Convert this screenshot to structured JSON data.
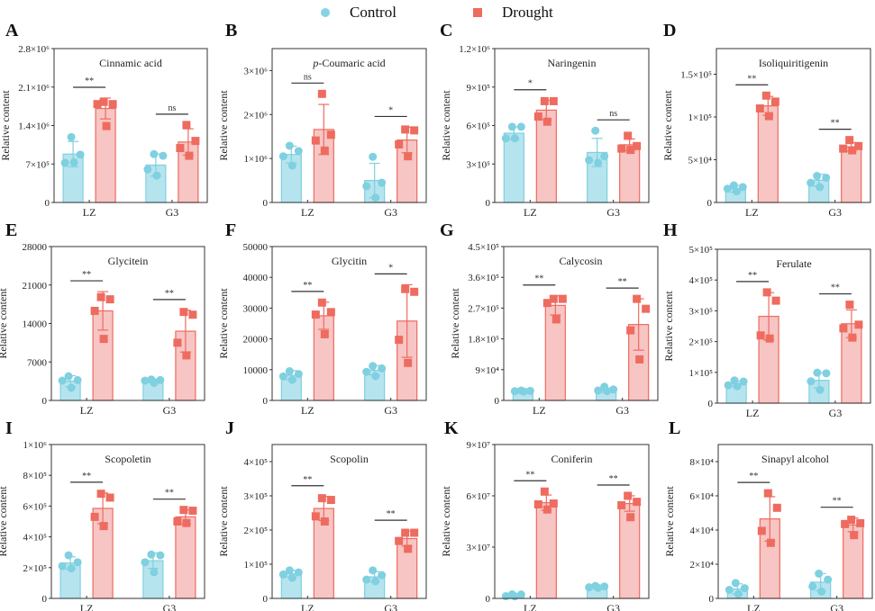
{
  "legend": {
    "control_label": "Control",
    "drought_label": "Drought",
    "control_color": "#7fd0e0",
    "drought_color": "#ee6b5f",
    "control_fill": "#b6e4ee",
    "drought_fill": "#f7c5c3"
  },
  "chart_data": [
    {
      "panel": "A",
      "type": "bar",
      "title": "Cinnamic acid",
      "title_italic_prefix": "",
      "ylabel": "Relative content",
      "categories": [
        "LZ",
        "G3"
      ],
      "ylim": [
        0,
        2800000
      ],
      "yticks": [
        {
          "v": 0,
          "label": "0"
        },
        {
          "v": 700000,
          "label": "7×10⁵"
        },
        {
          "v": 1400000,
          "label": "1.4×10⁶"
        },
        {
          "v": 2100000,
          "label": "2.1×10⁶"
        },
        {
          "v": 2800000,
          "label": "2.8×10⁶"
        }
      ],
      "series": [
        {
          "name": "Control",
          "means": [
            880000,
            680000
          ],
          "sd": [
            230000,
            200000
          ],
          "points": [
            [
              1190000,
              870000,
              720000,
              730000
            ],
            [
              880000,
              850000,
              600000,
              490000
            ]
          ]
        },
        {
          "name": "Drought",
          "means": [
            1710000,
            1100000
          ],
          "sd": [
            190000,
            240000
          ],
          "points": [
            [
              1830000,
              1790000,
              1790000,
              1390000
            ],
            [
              1410000,
              1120000,
              990000,
              850000
            ]
          ]
        }
      ],
      "significance": [
        "**",
        "ns"
      ]
    },
    {
      "panel": "B",
      "type": "bar",
      "title": "Coumaric acid",
      "title_italic_prefix": "p-",
      "ylabel": "Relative content",
      "categories": [
        "LZ",
        "G3"
      ],
      "ylim": [
        0,
        3500000
      ],
      "yticks": [
        {
          "v": 0,
          "label": "0"
        },
        {
          "v": 1000000,
          "label": "1×10⁶"
        },
        {
          "v": 2000000,
          "label": "2×10⁶"
        },
        {
          "v": 3000000,
          "label": "3×10⁶"
        }
      ],
      "series": [
        {
          "name": "Control",
          "means": [
            1090000,
            500000
          ],
          "sd": [
            190000,
            390000
          ],
          "points": [
            [
              1290000,
              1170000,
              1050000,
              840000
            ],
            [
              1040000,
              450000,
              370000,
              110000
            ]
          ]
        },
        {
          "name": "Drought",
          "means": [
            1660000,
            1420000
          ],
          "sd": [
            570000,
            290000
          ],
          "points": [
            [
              2470000,
              1540000,
              1410000,
              1180000
            ],
            [
              1660000,
              1640000,
              1320000,
              1050000
            ]
          ]
        }
      ],
      "significance": [
        "ns",
        "*"
      ]
    },
    {
      "panel": "C",
      "type": "bar",
      "title": "Naringenin",
      "title_italic_prefix": "",
      "ylabel": "Relative content",
      "categories": [
        "LZ",
        "G3"
      ],
      "ylim": [
        0,
        1200000
      ],
      "yticks": [
        {
          "v": 0,
          "label": "0"
        },
        {
          "v": 300000,
          "label": "3×10⁵"
        },
        {
          "v": 600000,
          "label": "6×10⁵"
        },
        {
          "v": 900000,
          "label": "9×10⁵"
        },
        {
          "v": 1200000,
          "label": "1.2×10⁶"
        }
      ],
      "series": [
        {
          "name": "Control",
          "means": [
            540000,
            390000
          ],
          "sd": [
            50000,
            110000
          ],
          "points": [
            [
              590000,
              590000,
              500000,
              500000
            ],
            [
              560000,
              360000,
              330000,
              310000
            ]
          ]
        },
        {
          "name": "Drought",
          "means": [
            720000,
            450000
          ],
          "sd": [
            75000,
            45000
          ],
          "points": [
            [
              790000,
              790000,
              670000,
              630000
            ],
            [
              520000,
              440000,
              420000,
              410000
            ]
          ]
        }
      ],
      "significance": [
        "*",
        "ns"
      ]
    },
    {
      "panel": "D",
      "type": "bar",
      "title": "Isoliquiritigenin",
      "title_italic_prefix": "",
      "ylabel": "Relative content",
      "categories": [
        "LZ",
        "G3"
      ],
      "ylim": [
        0,
        180000
      ],
      "yticks": [
        {
          "v": 0,
          "label": "0"
        },
        {
          "v": 50000,
          "label": "5×10⁴"
        },
        {
          "v": 100000,
          "label": "1×10⁵"
        },
        {
          "v": 150000,
          "label": "1.5×10⁵"
        }
      ],
      "series": [
        {
          "name": "Control",
          "means": [
            16000,
            26000
          ],
          "sd": [
            4000,
            7000
          ],
          "points": [
            [
              20000,
              18000,
              16000,
              13000
            ],
            [
              31000,
              29000,
              23000,
              18000
            ]
          ]
        },
        {
          "name": "Drought",
          "means": [
            113000,
            65000
          ],
          "sd": [
            11000,
            5000
          ],
          "points": [
            [
              125000,
              118000,
              110000,
              101000
            ],
            [
              73000,
              66000,
              63000,
              61000
            ]
          ]
        }
      ],
      "significance": [
        "**",
        "**"
      ]
    },
    {
      "panel": "E",
      "type": "bar",
      "title": "Glycitein",
      "title_italic_prefix": "",
      "ylabel": "Relative content",
      "categories": [
        "LZ",
        "G3"
      ],
      "ylim": [
        0,
        28000
      ],
      "yticks": [
        {
          "v": 0,
          "label": "0"
        },
        {
          "v": 7000,
          "label": "7000"
        },
        {
          "v": 14000,
          "label": "14000"
        },
        {
          "v": 21000,
          "label": "21000"
        },
        {
          "v": 28000,
          "label": "28000"
        }
      ],
      "series": [
        {
          "name": "Control",
          "means": [
            3500,
            3600
          ],
          "sd": [
            1000,
            300
          ],
          "points": [
            [
              4400,
              3700,
              3600,
              2300
            ],
            [
              3800,
              3700,
              3600,
              3200
            ]
          ]
        },
        {
          "name": "Drought",
          "means": [
            16300,
            12600
          ],
          "sd": [
            3500,
            3800
          ],
          "points": [
            [
              18800,
              18400,
              16300,
              11200
            ],
            [
              16100,
              15600,
              10500,
              8200
            ]
          ]
        }
      ],
      "significance": [
        "**",
        "**"
      ]
    },
    {
      "panel": "F",
      "type": "bar",
      "title": "Glycitin",
      "title_italic_prefix": "",
      "ylabel": "Relative content",
      "categories": [
        "LZ",
        "G3"
      ],
      "ylim": [
        0,
        50000
      ],
      "yticks": [
        {
          "v": 0,
          "label": "0"
        },
        {
          "v": 10000,
          "label": "10000"
        },
        {
          "v": 20000,
          "label": "20000"
        },
        {
          "v": 30000,
          "label": "30000"
        },
        {
          "v": 40000,
          "label": "40000"
        },
        {
          "v": 50000,
          "label": "50000"
        }
      ],
      "series": [
        {
          "name": "Control",
          "means": [
            8200,
            9800
          ],
          "sd": [
            1500,
            1500
          ],
          "points": [
            [
              9500,
              8600,
              7800,
              6700
            ],
            [
              11200,
              10400,
              9300,
              7900
            ]
          ]
        },
        {
          "name": "Drought",
          "means": [
            27500,
            25800
          ],
          "sd": [
            4400,
            11800
          ],
          "points": [
            [
              31800,
              28700,
              27900,
              21500
            ],
            [
              36200,
              35300,
              19700,
              12200
            ]
          ]
        }
      ],
      "significance": [
        "**",
        "*"
      ]
    },
    {
      "panel": "G",
      "type": "bar",
      "title": "Calycosin",
      "title_italic_prefix": "",
      "ylabel": "Relative content",
      "categories": [
        "LZ",
        "G3"
      ],
      "ylim": [
        0,
        450000
      ],
      "yticks": [
        {
          "v": 0,
          "label": "0"
        },
        {
          "v": 90000,
          "label": "9×10⁴"
        },
        {
          "v": 180000,
          "label": "1.8×10⁵"
        },
        {
          "v": 270000,
          "label": "2.7×10⁵"
        },
        {
          "v": 360000,
          "label": "3.6×10⁵"
        },
        {
          "v": 450000,
          "label": "4.5×10⁵"
        }
      ],
      "series": [
        {
          "name": "Control",
          "means": [
            27000,
            30000
          ],
          "sd": [
            3000,
            6000
          ],
          "points": [
            [
              29000,
              28000,
              27000,
              26000
            ],
            [
              40000,
              32000,
              29000,
              27000
            ]
          ]
        },
        {
          "name": "Drought",
          "means": [
            278000,
            222000
          ],
          "sd": [
            28000,
            75000
          ],
          "points": [
            [
              297000,
              297000,
              285000,
              237000
            ],
            [
              297000,
              268000,
              205000,
              120000
            ]
          ]
        }
      ],
      "significance": [
        "**",
        "**"
      ]
    },
    {
      "panel": "H",
      "type": "bar",
      "title": "Ferulate",
      "title_italic_prefix": "",
      "ylabel": "Relative content",
      "categories": [
        "LZ",
        "G3"
      ],
      "ylim": [
        0,
        500000
      ],
      "yticks": [
        {
          "v": 0,
          "label": "0"
        },
        {
          "v": 100000,
          "label": "1×10⁵"
        },
        {
          "v": 200000,
          "label": "2×10⁵"
        },
        {
          "v": 300000,
          "label": "3×10⁵"
        },
        {
          "v": 400000,
          "label": "4×10⁵"
        },
        {
          "v": 500000,
          "label": "5×10⁵"
        }
      ],
      "series": [
        {
          "name": "Control",
          "means": [
            63000,
            74000
          ],
          "sd": [
            8000,
            25000
          ],
          "points": [
            [
              74000,
              70000,
              58000,
              55000
            ],
            [
              99000,
              97000,
              71000,
              43000
            ]
          ]
        },
        {
          "name": "Drought",
          "means": [
            282000,
            258000
          ],
          "sd": [
            77000,
            45000
          ],
          "points": [
            [
              360000,
              333000,
              220000,
              210000
            ],
            [
              320000,
              255000,
              243000,
              213000
            ]
          ]
        }
      ],
      "significance": [
        "**",
        "**"
      ]
    },
    {
      "panel": "I",
      "type": "bar",
      "title": "Scopoletin",
      "title_italic_prefix": "",
      "ylabel": "Relative content",
      "categories": [
        "LZ",
        "G3"
      ],
      "ylim": [
        0,
        1000000
      ],
      "yticks": [
        {
          "v": 0,
          "label": "0"
        },
        {
          "v": 200000,
          "label": "2×10⁵"
        },
        {
          "v": 400000,
          "label": "4×10⁵"
        },
        {
          "v": 600000,
          "label": "6×10⁵"
        },
        {
          "v": 800000,
          "label": "8×10⁵"
        },
        {
          "v": 1000000,
          "label": "1×10⁶"
        }
      ],
      "series": [
        {
          "name": "Control",
          "means": [
            230000,
            245000
          ],
          "sd": [
            40000,
            50000
          ],
          "points": [
            [
              280000,
              235000,
              210000,
              195000
            ],
            [
              285000,
              280000,
              235000,
              170000
            ]
          ]
        },
        {
          "name": "Drought",
          "means": [
            585000,
            530000
          ],
          "sd": [
            100000,
            45000
          ],
          "points": [
            [
              680000,
              655000,
              530000,
              470000
            ],
            [
              575000,
              570000,
              500000,
              490000
            ]
          ]
        }
      ],
      "significance": [
        "**",
        "**"
      ]
    },
    {
      "panel": "J",
      "type": "bar",
      "title": "Scopolin",
      "title_italic_prefix": "",
      "ylabel": "Relative content",
      "categories": [
        "LZ",
        "G3"
      ],
      "ylim": [
        0,
        450000
      ],
      "yticks": [
        {
          "v": 0,
          "label": "0"
        },
        {
          "v": 100000,
          "label": "1×10⁵"
        },
        {
          "v": 200000,
          "label": "2×10⁵"
        },
        {
          "v": 300000,
          "label": "3×10⁵"
        },
        {
          "v": 400000,
          "label": "4×10⁵"
        }
      ],
      "series": [
        {
          "name": "Control",
          "means": [
            72000,
            63000
          ],
          "sd": [
            10000,
            15000
          ],
          "points": [
            [
              82000,
              76000,
              70000,
              60000
            ],
            [
              82000,
              68000,
              55000,
              50000
            ]
          ]
        },
        {
          "name": "Drought",
          "means": [
            263000,
            175000
          ],
          "sd": [
            35000,
            22000
          ],
          "points": [
            [
              293000,
              288000,
              240000,
              225000
            ],
            [
              192000,
              192000,
              168000,
              145000
            ]
          ]
        }
      ],
      "significance": [
        "**",
        "**"
      ]
    },
    {
      "panel": "K",
      "type": "bar",
      "title": "Coniferin",
      "title_italic_prefix": "",
      "ylabel": "Relative content",
      "categories": [
        "LZ",
        "G3"
      ],
      "ylim": [
        0,
        90000000
      ],
      "yticks": [
        {
          "v": 0,
          "label": "0"
        },
        {
          "v": 30000000,
          "label": "3×10⁷"
        },
        {
          "v": 60000000,
          "label": "6×10⁷"
        },
        {
          "v": 90000000,
          "label": "9×10⁷"
        }
      ],
      "series": [
        {
          "name": "Control",
          "means": [
            1800000,
            6700000
          ],
          "sd": [
            600000,
            600000
          ],
          "points": [
            [
              2400000,
              2300000,
              1300000,
              1200000
            ],
            [
              7300000,
              7000000,
              6500000,
              6200000
            ]
          ]
        },
        {
          "name": "Drought",
          "means": [
            56000000,
            55500000
          ],
          "sd": [
            4500000,
            4500000
          ],
          "points": [
            [
              62500000,
              55500000,
              55000000,
              52000000
            ],
            [
              60000000,
              56500000,
              54500000,
              47500000
            ]
          ]
        }
      ],
      "significance": [
        "**",
        "**"
      ]
    },
    {
      "panel": "L",
      "type": "bar",
      "title": "Sinapyl alcohol",
      "title_italic_prefix": "",
      "ylabel": "Relative content",
      "categories": [
        "LZ",
        "G3"
      ],
      "ylim": [
        0,
        90000
      ],
      "yticks": [
        {
          "v": 0,
          "label": "0"
        },
        {
          "v": 20000,
          "label": "2×10⁴"
        },
        {
          "v": 40000,
          "label": "4×10⁴"
        },
        {
          "v": 60000,
          "label": "6×10⁴"
        },
        {
          "v": 80000,
          "label": "8×10⁴"
        }
      ],
      "series": [
        {
          "name": "Control",
          "means": [
            5500,
            9500
          ],
          "sd": [
            3000,
            5000
          ],
          "points": [
            [
              9000,
              6000,
              5000,
              2500
            ],
            [
              14500,
              11000,
              7000,
              4000
            ]
          ]
        },
        {
          "name": "Drought",
          "means": [
            46500,
            43000
          ],
          "sd": [
            13000,
            4000
          ],
          "points": [
            [
              61500,
              53000,
              39500,
              32500
            ],
            [
              46000,
              44000,
              43500,
              37000
            ]
          ]
        }
      ],
      "significance": [
        "**",
        "**"
      ]
    }
  ]
}
